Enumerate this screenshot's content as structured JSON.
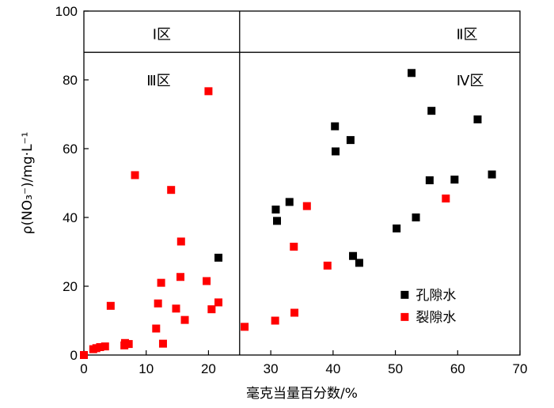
{
  "chart_data": {
    "type": "scatter",
    "xlabel": "毫克当量百分数/%",
    "ylabel": "ρ(NO₃⁻)/mg·L⁻¹",
    "xlim": [
      0,
      70
    ],
    "ylim": [
      0,
      100
    ],
    "x_ticks": [
      "0",
      "10",
      "20",
      "30",
      "40",
      "50",
      "60",
      "70"
    ],
    "y_ticks": [
      "0",
      "20",
      "40",
      "60",
      "80",
      "100"
    ],
    "grid": false,
    "legend_position": "lower-right",
    "zone_divider_x": 25,
    "zone_header_y": 88,
    "zones": [
      {
        "label": "Ⅰ区",
        "x": 12.5,
        "y": 93.5
      },
      {
        "label": "Ⅱ区",
        "x": 61.5,
        "y": 93.5
      },
      {
        "label": "Ⅲ区",
        "x": 12,
        "y": 80
      },
      {
        "label": "Ⅳ区",
        "x": 62,
        "y": 80
      }
    ],
    "series": [
      {
        "name": "孔隙水",
        "color": "#000000",
        "points": [
          [
            21.6,
            28.3
          ],
          [
            30.8,
            42.3
          ],
          [
            31.0,
            39.0
          ],
          [
            33.0,
            44.5
          ],
          [
            40.3,
            66.5
          ],
          [
            40.4,
            59.2
          ],
          [
            42.8,
            62.5
          ],
          [
            43.2,
            28.8
          ],
          [
            44.2,
            26.8
          ],
          [
            50.2,
            36.8
          ],
          [
            52.6,
            82.0
          ],
          [
            53.3,
            40.0
          ],
          [
            55.5,
            50.8
          ],
          [
            55.8,
            71.0
          ],
          [
            59.5,
            51.0
          ],
          [
            63.2,
            68.5
          ],
          [
            65.5,
            52.5
          ]
        ]
      },
      {
        "name": "裂隙水",
        "color": "#ff0000",
        "points": [
          [
            0.0,
            0.0
          ],
          [
            1.5,
            1.7
          ],
          [
            2.0,
            2.0
          ],
          [
            2.6,
            2.3
          ],
          [
            3.4,
            2.5
          ],
          [
            4.3,
            14.3
          ],
          [
            6.5,
            2.8
          ],
          [
            6.6,
            3.5
          ],
          [
            7.2,
            3.2
          ],
          [
            8.2,
            52.3
          ],
          [
            11.6,
            7.7
          ],
          [
            11.9,
            15.0
          ],
          [
            12.4,
            21.0
          ],
          [
            12.7,
            3.3
          ],
          [
            14.0,
            48.0
          ],
          [
            14.8,
            13.5
          ],
          [
            15.5,
            22.7
          ],
          [
            15.6,
            33.0
          ],
          [
            16.2,
            10.2
          ],
          [
            19.7,
            21.5
          ],
          [
            20.0,
            76.7
          ],
          [
            20.5,
            13.3
          ],
          [
            21.6,
            15.3
          ],
          [
            25.8,
            8.2
          ],
          [
            30.7,
            10.0
          ],
          [
            33.7,
            31.5
          ],
          [
            33.8,
            12.3
          ],
          [
            35.8,
            43.3
          ],
          [
            39.1,
            26.0
          ],
          [
            58.1,
            45.5
          ]
        ]
      }
    ]
  }
}
